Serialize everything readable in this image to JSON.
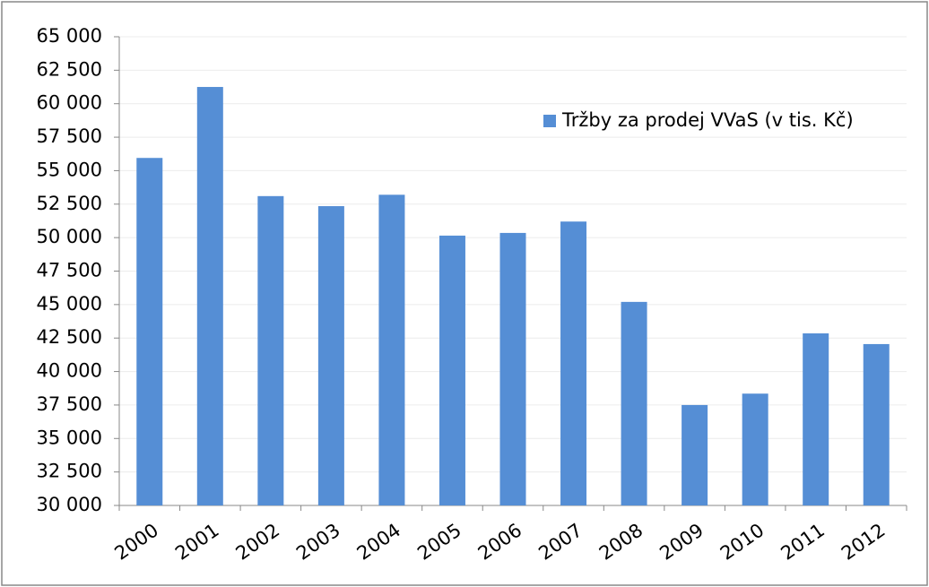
{
  "chart_data": {
    "type": "bar",
    "categories": [
      "2000",
      "2001",
      "2002",
      "2003",
      "2004",
      "2005",
      "2006",
      "2007",
      "2008",
      "2009",
      "2010",
      "2011",
      "2012"
    ],
    "series": [
      {
        "name": "Tržby za prodej VVaS (v tis. Kč)",
        "color": "#558ed5",
        "values": [
          55950,
          61250,
          53100,
          52350,
          53200,
          50150,
          50350,
          51200,
          45200,
          37500,
          38350,
          42850,
          42050
        ]
      }
    ],
    "ylim": [
      30000,
      65000
    ],
    "yticks": [
      {
        "value": 30000,
        "label": "30 000"
      },
      {
        "value": 32500,
        "label": "32 500"
      },
      {
        "value": 35000,
        "label": "35 000"
      },
      {
        "value": 37500,
        "label": "37 500"
      },
      {
        "value": 40000,
        "label": "40 000"
      },
      {
        "value": 42500,
        "label": "42 500"
      },
      {
        "value": 45000,
        "label": "45 000"
      },
      {
        "value": 47500,
        "label": "47 500"
      },
      {
        "value": 50000,
        "label": "50 000"
      },
      {
        "value": 52500,
        "label": "52 500"
      },
      {
        "value": 55000,
        "label": "55 000"
      },
      {
        "value": 57500,
        "label": "57 500"
      },
      {
        "value": 60000,
        "label": "60 000"
      },
      {
        "value": 62500,
        "label": "62 500"
      },
      {
        "value": 65000,
        "label": "65 000"
      }
    ],
    "grid": true,
    "legend": "upper right"
  }
}
